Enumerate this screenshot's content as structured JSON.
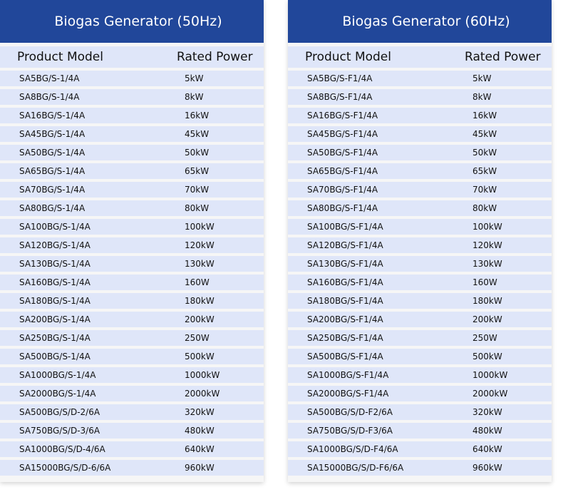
{
  "tables": [
    {
      "title": "Biogas Generator (50Hz)",
      "headers": [
        "Product Model",
        "Rated Power"
      ],
      "rows": [
        [
          "SA5BG/S-1/4A",
          "5kW"
        ],
        [
          "SA8BG/S-1/4A",
          "8kW"
        ],
        [
          "SA16BG/S-1/4A",
          "16kW"
        ],
        [
          "SA45BG/S-1/4A",
          "45kW"
        ],
        [
          "SA50BG/S-1/4A",
          "50kW"
        ],
        [
          "SA65BG/S-1/4A",
          "65kW"
        ],
        [
          "SA70BG/S-1/4A",
          "70kW"
        ],
        [
          "SA80BG/S-1/4A",
          "80kW"
        ],
        [
          "SA100BG/S-1/4A",
          "100kW"
        ],
        [
          "SA120BG/S-1/4A",
          "120kW"
        ],
        [
          "SA130BG/S-1/4A",
          "130kW"
        ],
        [
          "SA160BG/S-1/4A",
          "160W"
        ],
        [
          "SA180BG/S-1/4A",
          "180kW"
        ],
        [
          "SA200BG/S-1/4A",
          "200kW"
        ],
        [
          "SA250BG/S-1/4A",
          "250W"
        ],
        [
          "SA500BG/S-1/4A",
          "500kW"
        ],
        [
          "SA1000BG/S-1/4A",
          "1000kW"
        ],
        [
          "SA2000BG/S-1/4A",
          "2000kW"
        ],
        [
          "SA500BG/S/D-2/6A",
          "320kW"
        ],
        [
          "SA750BG/S/D-3/6A",
          "480kW"
        ],
        [
          "SA1000BG/S/D-4/6A",
          "640kW"
        ],
        [
          "SA15000BG/S/D-6/6A",
          "960kW"
        ]
      ]
    },
    {
      "title": "Biogas Generator (60Hz)",
      "headers": [
        "Product Model",
        "Rated Power"
      ],
      "rows": [
        [
          "SA5BG/S-F1/4A",
          "5kW"
        ],
        [
          "SA8BG/S-F1/4A",
          "8kW"
        ],
        [
          "SA16BG/S-F1/4A",
          "16kW"
        ],
        [
          "SA45BG/S-F1/4A",
          "45kW"
        ],
        [
          "SA50BG/S-F1/4A",
          "50kW"
        ],
        [
          "SA65BG/S-F1/4A",
          "65kW"
        ],
        [
          "SA70BG/S-F1/4A",
          "70kW"
        ],
        [
          "SA80BG/S-F1/4A",
          "80kW"
        ],
        [
          "SA100BG/S-F1/4A",
          "100kW"
        ],
        [
          "SA120BG/S-F1/4A",
          "120kW"
        ],
        [
          "SA130BG/S-F1/4A",
          "130kW"
        ],
        [
          "SA160BG/S-F1/4A",
          "160W"
        ],
        [
          "SA180BG/S-F1/4A",
          "180kW"
        ],
        [
          "SA200BG/S-F1/4A",
          "200kW"
        ],
        [
          "SA250BG/S-F1/4A",
          "250W"
        ],
        [
          "SA500BG/S-F1/4A",
          "500kW"
        ],
        [
          "SA1000BG/S-F1/4A",
          "1000kW"
        ],
        [
          "SA2000BG/S-F1/4A",
          "2000kW"
        ],
        [
          "SA500BG/S/D-F2/6A",
          "320kW"
        ],
        [
          "SA750BG/S/D-F3/6A",
          "480kW"
        ],
        [
          "SA1000BG/S/D-F4/6A",
          "640kW"
        ],
        [
          "SA15000BG/S/D-F6/6A",
          "960kW"
        ]
      ]
    }
  ],
  "colors": {
    "header": "#21479a",
    "row": "#dfe6f9",
    "background": "#f6f6f6"
  }
}
